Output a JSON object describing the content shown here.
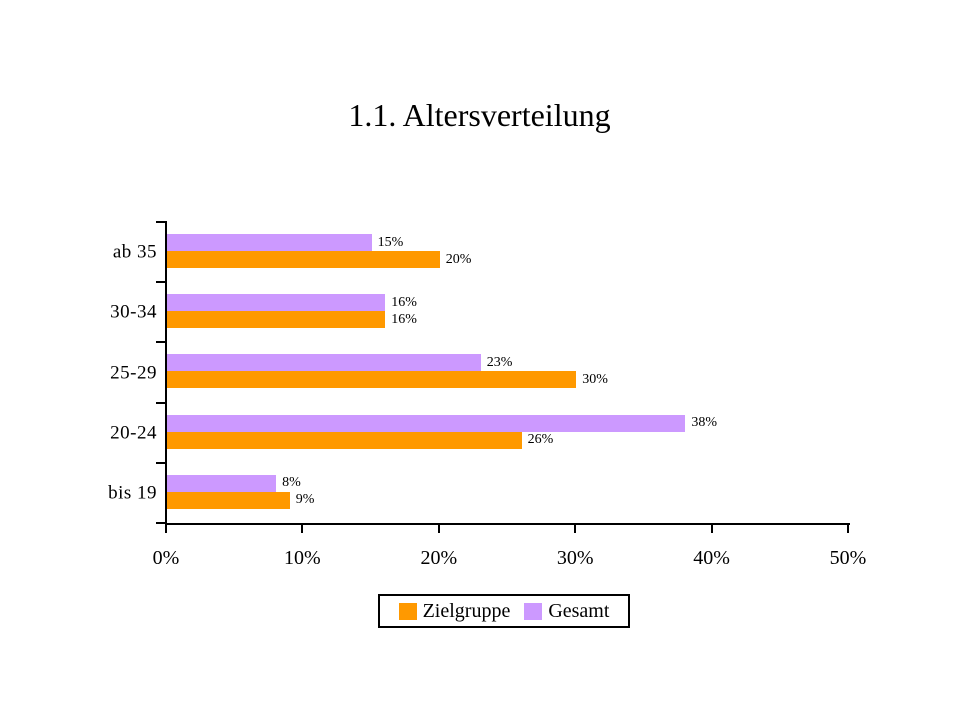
{
  "chart_data": {
    "type": "bar",
    "orientation": "horizontal",
    "title": "1.1. Altersverteilung",
    "background": "#FFFFFF",
    "axis_color": "#000000",
    "grid": false,
    "categories_top_to_bottom": [
      "ab 35",
      "30-34",
      "25-29",
      "20-24",
      "bis 19"
    ],
    "series": [
      {
        "name": "Zielgruppe",
        "color": "#FF9900",
        "values": [
          20,
          16,
          30,
          26,
          9
        ]
      },
      {
        "name": "Gesamt",
        "color": "#CC99FF",
        "values": [
          15,
          16,
          23,
          38,
          8
        ]
      }
    ],
    "value_label_suffix": "%",
    "x_axis": {
      "min": 0,
      "max": 50,
      "ticks": [
        "0%",
        "10%",
        "20%",
        "30%",
        "40%",
        "50%"
      ]
    },
    "legend": {
      "position": "bottom-center",
      "border": true,
      "entries": [
        "Zielgruppe",
        "Gesamt"
      ]
    }
  }
}
